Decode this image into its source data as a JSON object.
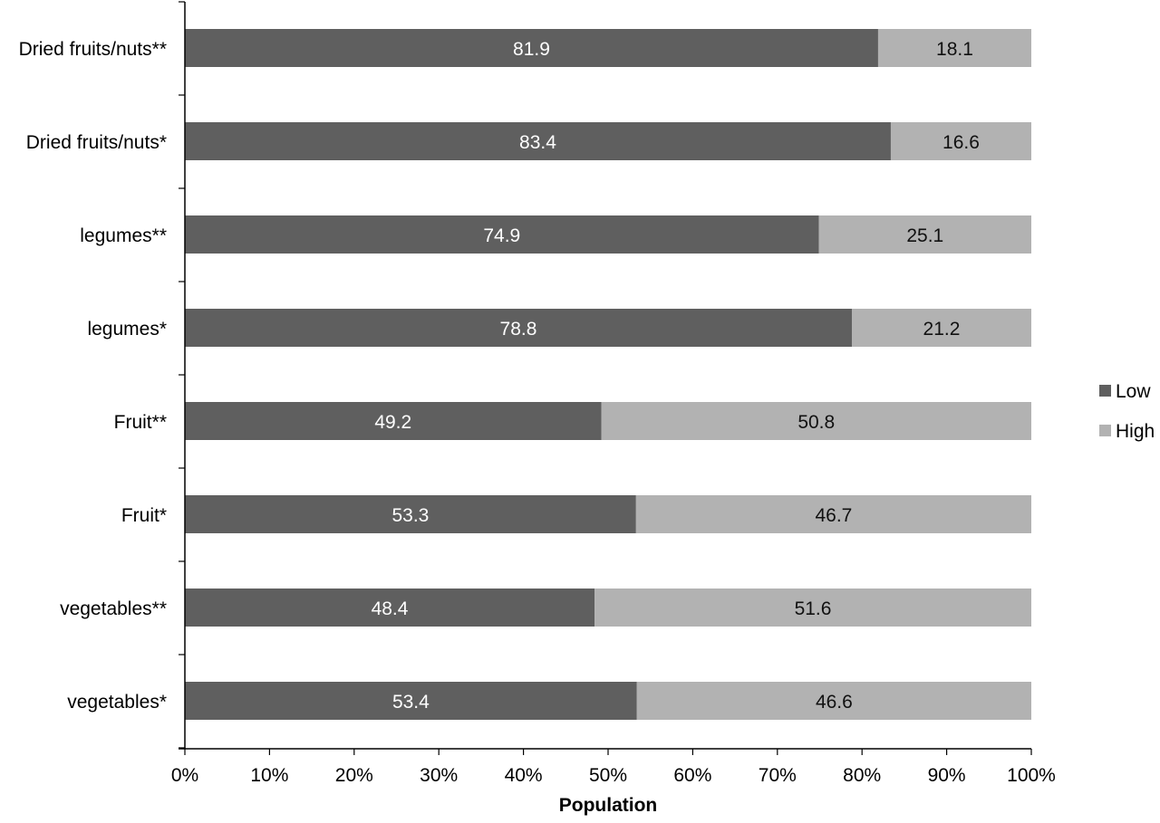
{
  "chart_data": {
    "type": "bar",
    "orientation": "horizontal",
    "stacked": "percent",
    "categories": [
      "Dried fruits/nuts**",
      "Dried fruits/nuts*",
      "legumes**",
      "legumes*",
      "Fruit**",
      "Fruit*",
      "vegetables**",
      "vegetables*"
    ],
    "series": [
      {
        "name": "Low",
        "color": "#5f5f5f",
        "label_color": "#ffffff",
        "values": [
          81.9,
          83.4,
          74.9,
          78.8,
          49.2,
          53.3,
          48.4,
          53.4
        ],
        "labels": [
          "81.9",
          "83.4",
          "74.9",
          "78.8",
          "49.2",
          "53.3",
          "48.4",
          "53.4"
        ]
      },
      {
        "name": "High",
        "color": "#b2b2b2",
        "label_color": "#111111",
        "values": [
          18.1,
          16.6,
          25.1,
          21.2,
          50.8,
          46.7,
          51.6,
          46.6
        ],
        "labels": [
          "18.1",
          "16.6",
          "25.1",
          "21.2",
          "50.8",
          "46.7",
          "51.6",
          "46.6"
        ]
      }
    ],
    "xlabel": "Population",
    "ylabel": "",
    "xlim": [
      0,
      100
    ],
    "x_ticks": [
      "0%",
      "10%",
      "20%",
      "30%",
      "40%",
      "50%",
      "60%",
      "70%",
      "80%",
      "90%",
      "100%"
    ],
    "grid": false,
    "legend_position": "right"
  }
}
